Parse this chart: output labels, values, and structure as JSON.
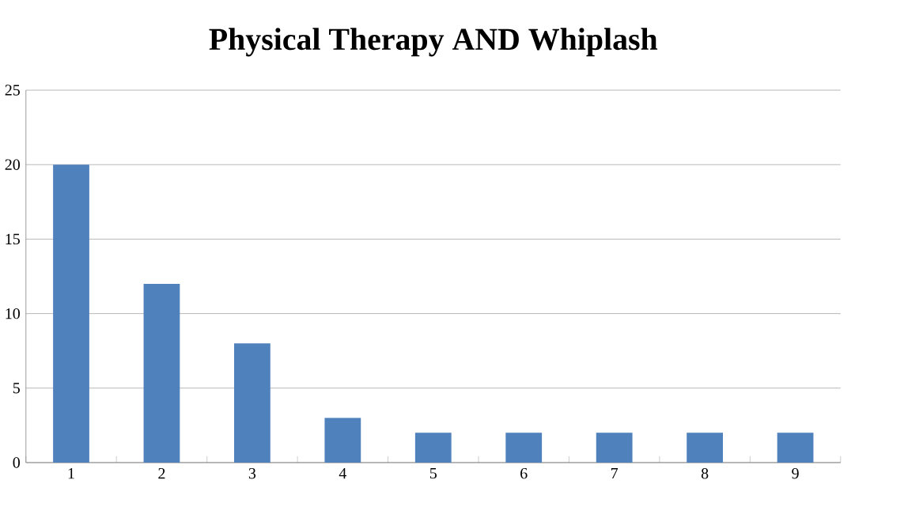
{
  "chart_data": {
    "type": "bar",
    "title": "Physical Therapy AND Whiplash",
    "categories": [
      "1",
      "2",
      "3",
      "4",
      "5",
      "6",
      "7",
      "8",
      "9"
    ],
    "values": [
      20,
      12,
      8,
      3,
      2,
      2,
      2,
      2,
      2
    ],
    "color": "#4f81bd",
    "ylim": [
      0,
      25
    ],
    "yticks": [
      0,
      5,
      10,
      15,
      20,
      25
    ],
    "grid": "y"
  }
}
